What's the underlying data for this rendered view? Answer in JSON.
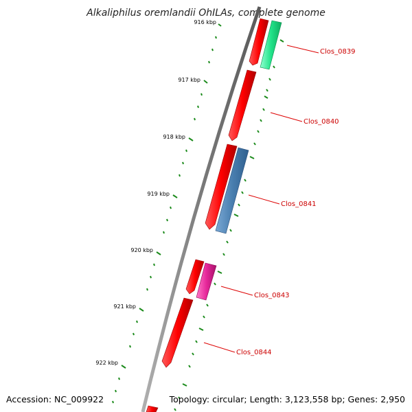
{
  "title": "Alkaliphilus oremlandii OhILAs, complete genome",
  "footer": {
    "accession": "Accession: NC_009922",
    "summary": "Topology: circular; Length: 3,123,558 bp; Genes: 2,950"
  },
  "ticks": [
    "916 kbp",
    "917 kbp",
    "918 kbp",
    "919 kbp",
    "920 kbp",
    "921 kbp",
    "922 kbp"
  ],
  "genes": [
    "Clos_0839",
    "Clos_0840",
    "Clos_0841",
    "Clos_0843",
    "Clos_0844"
  ],
  "colors": {
    "backbone": "#808080",
    "forward_cds": "#e60000",
    "tick_marks": "#1a8a1a",
    "label": "#cc0000",
    "leader": "#dd0000",
    "green_feature": "#22e38a",
    "blue_feature": "#4a7fb0",
    "pink_feature": "#e6289a"
  }
}
